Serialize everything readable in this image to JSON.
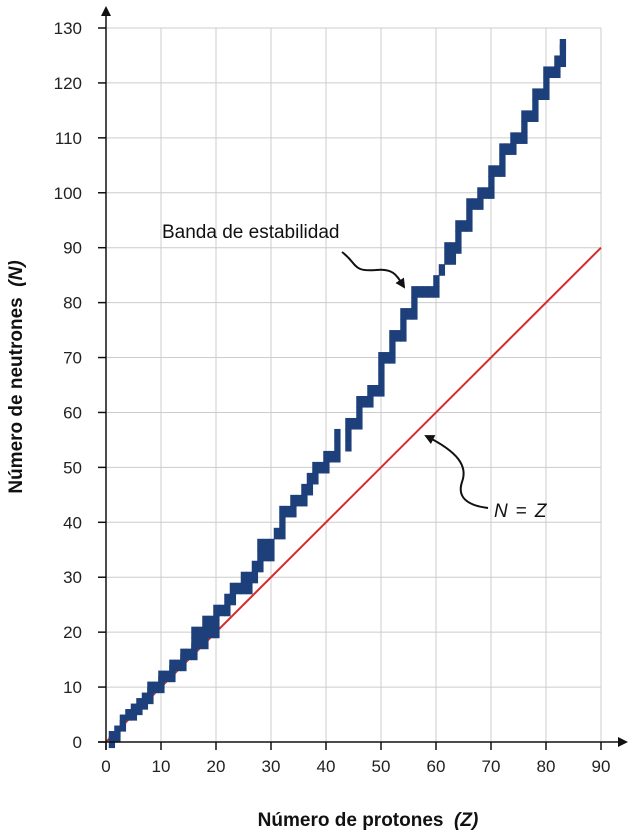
{
  "chart_data": {
    "type": "scatter",
    "xlabel_main": "Número de protones",
    "xlabel_var": "(Z)",
    "ylabel_main": "Número de neutrones",
    "ylabel_var": "(N)",
    "xlim": [
      0,
      90
    ],
    "ylim": [
      0,
      130
    ],
    "xticks": [
      0,
      10,
      20,
      30,
      40,
      50,
      60,
      70,
      80,
      90
    ],
    "yticks": [
      0,
      10,
      20,
      30,
      40,
      50,
      60,
      70,
      80,
      90,
      100,
      110,
      120,
      130
    ],
    "grid": true,
    "colors": {
      "stable": "#1d3f7a",
      "line": "#d62b2b",
      "grid": "#cccccc",
      "axis": "#111111"
    },
    "annotations": {
      "band": "Banda de estabilidad",
      "line_label_n": "N",
      "line_label_eq": "=",
      "line_label_z": "Z"
    },
    "reference_line": {
      "name": "N = Z",
      "points": [
        [
          0,
          0
        ],
        [
          90,
          90
        ]
      ]
    },
    "stable_band": [
      [
        1,
        0
      ],
      [
        1,
        1
      ],
      [
        2,
        1
      ],
      [
        2,
        2
      ],
      [
        3,
        3
      ],
      [
        3,
        4
      ],
      [
        4,
        5
      ],
      [
        5,
        5
      ],
      [
        5,
        6
      ],
      [
        6,
        6
      ],
      [
        6,
        7
      ],
      [
        7,
        7
      ],
      [
        7,
        8
      ],
      [
        8,
        8
      ],
      [
        8,
        9
      ],
      [
        8,
        10
      ],
      [
        9,
        10
      ],
      [
        10,
        10
      ],
      [
        10,
        11
      ],
      [
        10,
        12
      ],
      [
        11,
        12
      ],
      [
        12,
        12
      ],
      [
        12,
        13
      ],
      [
        12,
        14
      ],
      [
        13,
        14
      ],
      [
        14,
        14
      ],
      [
        14,
        15
      ],
      [
        14,
        16
      ],
      [
        15,
        16
      ],
      [
        16,
        16
      ],
      [
        16,
        17
      ],
      [
        16,
        18
      ],
      [
        16,
        20
      ],
      [
        17,
        18
      ],
      [
        17,
        20
      ],
      [
        18,
        18
      ],
      [
        18,
        20
      ],
      [
        18,
        22
      ],
      [
        19,
        20
      ],
      [
        19,
        22
      ],
      [
        20,
        20
      ],
      [
        20,
        22
      ],
      [
        20,
        24
      ],
      [
        21,
        24
      ],
      [
        22,
        24
      ],
      [
        22,
        26
      ],
      [
        23,
        26
      ],
      [
        23,
        28
      ],
      [
        24,
        28
      ],
      [
        25,
        28
      ],
      [
        25,
        30
      ],
      [
        26,
        28
      ],
      [
        26,
        30
      ],
      [
        27,
        30
      ],
      [
        27,
        32
      ],
      [
        28,
        32
      ],
      [
        28,
        34
      ],
      [
        28,
        36
      ],
      [
        29,
        34
      ],
      [
        29,
        36
      ],
      [
        30,
        34
      ],
      [
        30,
        36
      ],
      [
        31,
        38
      ],
      [
        32,
        38
      ],
      [
        32,
        40
      ],
      [
        32,
        42
      ],
      [
        33,
        42
      ],
      [
        34,
        42
      ],
      [
        34,
        44
      ],
      [
        35,
        44
      ],
      [
        36,
        44
      ],
      [
        36,
        46
      ],
      [
        37,
        46
      ],
      [
        37,
        48
      ],
      [
        38,
        48
      ],
      [
        38,
        50
      ],
      [
        39,
        50
      ],
      [
        40,
        50
      ],
      [
        40,
        52
      ],
      [
        41,
        52
      ],
      [
        42,
        52
      ],
      [
        42,
        54
      ],
      [
        42,
        56
      ],
      [
        44,
        54
      ],
      [
        44,
        56
      ],
      [
        44,
        58
      ],
      [
        45,
        58
      ],
      [
        46,
        58
      ],
      [
        46,
        60
      ],
      [
        46,
        62
      ],
      [
        47,
        62
      ],
      [
        48,
        62
      ],
      [
        48,
        64
      ],
      [
        49,
        64
      ],
      [
        50,
        64
      ],
      [
        50,
        66
      ],
      [
        50,
        68
      ],
      [
        50,
        70
      ],
      [
        51,
        70
      ],
      [
        52,
        70
      ],
      [
        52,
        72
      ],
      [
        52,
        74
      ],
      [
        53,
        74
      ],
      [
        54,
        74
      ],
      [
        54,
        76
      ],
      [
        54,
        78
      ],
      [
        55,
        78
      ],
      [
        56,
        78
      ],
      [
        56,
        80
      ],
      [
        56,
        82
      ],
      [
        57,
        82
      ],
      [
        58,
        82
      ],
      [
        59,
        82
      ],
      [
        60,
        82
      ],
      [
        60,
        84
      ],
      [
        61,
        86
      ],
      [
        62,
        88
      ],
      [
        62,
        90
      ],
      [
        63,
        88
      ],
      [
        63,
        90
      ],
      [
        64,
        90
      ],
      [
        64,
        92
      ],
      [
        64,
        94
      ],
      [
        65,
        94
      ],
      [
        66,
        94
      ],
      [
        66,
        96
      ],
      [
        66,
        98
      ],
      [
        67,
        98
      ],
      [
        68,
        98
      ],
      [
        68,
        100
      ],
      [
        69,
        100
      ],
      [
        70,
        100
      ],
      [
        70,
        102
      ],
      [
        70,
        104
      ],
      [
        71,
        104
      ],
      [
        72,
        104
      ],
      [
        72,
        106
      ],
      [
        72,
        108
      ],
      [
        73,
        108
      ],
      [
        74,
        108
      ],
      [
        74,
        110
      ],
      [
        75,
        110
      ],
      [
        76,
        110
      ],
      [
        76,
        112
      ],
      [
        76,
        114
      ],
      [
        77,
        114
      ],
      [
        78,
        114
      ],
      [
        78,
        116
      ],
      [
        78,
        118
      ],
      [
        79,
        118
      ],
      [
        80,
        118
      ],
      [
        80,
        120
      ],
      [
        80,
        122
      ],
      [
        81,
        122
      ],
      [
        82,
        122
      ],
      [
        82,
        124
      ],
      [
        83,
        124
      ],
      [
        83,
        126
      ],
      [
        83,
        127
      ]
    ]
  }
}
